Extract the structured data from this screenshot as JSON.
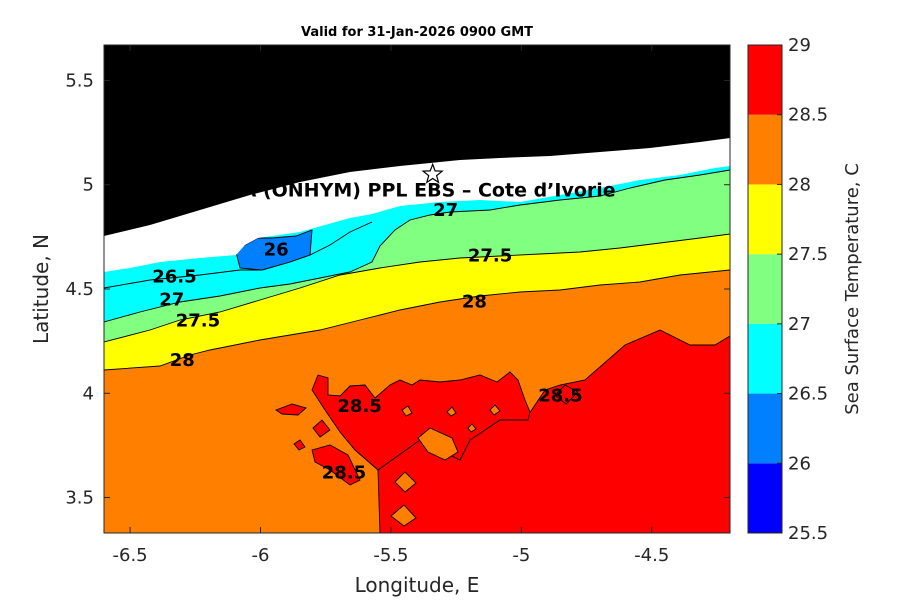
{
  "chart_data": {
    "type": "heatmap",
    "title": "Valid for 31-Jan-2026 0900 GMT",
    "xlabel": "Longitude, E",
    "ylabel": "Latitude, N",
    "xlim": [
      -6.6,
      -4.2
    ],
    "ylim": [
      3.33,
      5.67
    ],
    "x_ticks": [
      -6.5,
      -6,
      -5.5,
      -5,
      -4.5
    ],
    "y_ticks": [
      3.5,
      4,
      4.5,
      5,
      5.5
    ],
    "colorbar": {
      "label": "Sea Surface Temperature, C",
      "levels": [
        25.5,
        26,
        26.5,
        27,
        27.5,
        28,
        28.5,
        29
      ],
      "colors": [
        "#0000ff",
        "#0080ff",
        "#00ffff",
        "#80ff80",
        "#ffff00",
        "#ff8000",
        "#ff0000"
      ]
    },
    "land_color": "#000000",
    "nodata_color": "#ffffff",
    "contour_labels": [
      {
        "text": "26",
        "x": -5.94,
        "y": 4.69
      },
      {
        "text": "26.5",
        "x": -6.33,
        "y": 4.56
      },
      {
        "text": "27",
        "x": -6.34,
        "y": 4.45
      },
      {
        "text": "27",
        "x": -5.29,
        "y": 4.88
      },
      {
        "text": "27.5",
        "x": -6.24,
        "y": 4.35
      },
      {
        "text": "27.5",
        "x": -5.12,
        "y": 4.66
      },
      {
        "text": "28",
        "x": -6.3,
        "y": 4.16
      },
      {
        "text": "28",
        "x": -5.18,
        "y": 4.44
      },
      {
        "text": "28.5",
        "x": -5.62,
        "y": 3.94
      },
      {
        "text": "28.5",
        "x": -4.85,
        "y": 3.99
      },
      {
        "text": "28.5",
        "x": -5.68,
        "y": 3.62
      }
    ],
    "site_marker": {
      "label": "A (ONHYM) PPL EBS  – Cote d’Ivorie",
      "lon": -5.34,
      "lat": 5.05
    }
  }
}
